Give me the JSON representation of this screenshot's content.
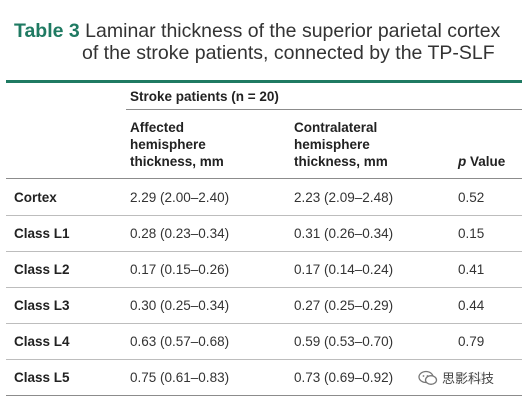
{
  "caption": {
    "label": "Table 3",
    "line1": "Laminar thickness of the superior parietal cortex",
    "line2": "of the stroke patients, connected by the TP-SLF"
  },
  "table": {
    "group_header": "Stroke patients (n = 20)",
    "col_affected": [
      "Affected",
      "hemisphere",
      "thickness, mm"
    ],
    "col_contralateral": [
      "Contralateral",
      "hemisphere",
      "thickness, mm"
    ],
    "col_p_italic": "p",
    "col_p_rest": " Value",
    "rows": [
      {
        "label": "Cortex",
        "affected": "2.29 (2.00–2.40)",
        "contralateral": "2.23 (2.09–2.48)",
        "p": "0.52"
      },
      {
        "label": "Class L1",
        "affected": "0.28 (0.23–0.34)",
        "contralateral": "0.31 (0.26–0.34)",
        "p": "0.15"
      },
      {
        "label": "Class L2",
        "affected": "0.17 (0.15–0.26)",
        "contralateral": "0.17 (0.14–0.24)",
        "p": "0.41"
      },
      {
        "label": "Class L3",
        "affected": "0.30 (0.25–0.34)",
        "contralateral": "0.27 (0.25–0.29)",
        "p": "0.44"
      },
      {
        "label": "Class L4",
        "affected": "0.63 (0.57–0.68)",
        "contralateral": "0.59 (0.53–0.70)",
        "p": "0.79"
      },
      {
        "label": "Class L5",
        "affected": "0.75 (0.61–0.83)",
        "contralateral": "0.73 (0.69–0.92)",
        "p": "0.72"
      }
    ]
  },
  "watermark": {
    "text": "思影科技",
    "icon": "wechat-icon"
  },
  "colors": {
    "accent": "#1f7a62"
  }
}
